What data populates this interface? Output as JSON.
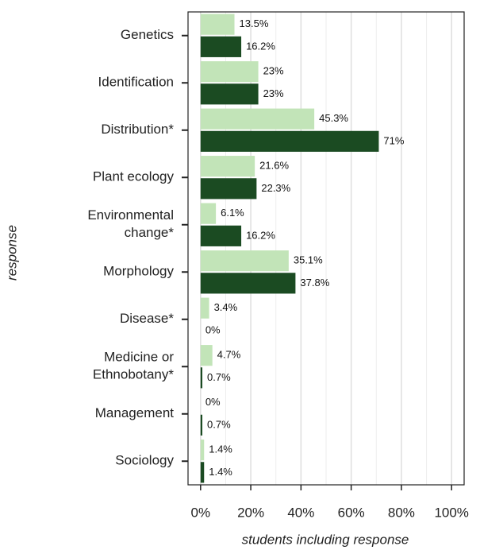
{
  "chart_data": {
    "type": "bar",
    "orientation": "horizontal",
    "x_label": "students including response",
    "y_label": "response",
    "categories": [
      "Genetics",
      "Identification",
      "Distribution*",
      "Plant ecology",
      "Environmental\nchange*",
      "Morphology",
      "Disease*",
      "Medicine or\nEthnobotany*",
      "Management",
      "Sociology"
    ],
    "series": [
      {
        "color": "#c2e4b8",
        "values": [
          13.5,
          23,
          45.3,
          21.6,
          6.1,
          35.1,
          3.4,
          4.7,
          0,
          1.4
        ],
        "value_labels": [
          "13.5%",
          "23%",
          "45.3%",
          "21.6%",
          "6.1%",
          "35.1%",
          "3.4%",
          "4.7%",
          "0%",
          "1.4%"
        ]
      },
      {
        "color": "#1b4b22",
        "values": [
          16.2,
          23,
          71,
          22.3,
          16.2,
          37.8,
          0,
          0.7,
          0.7,
          1.4
        ],
        "value_labels": [
          "16.2%",
          "23%",
          "71%",
          "22.3%",
          "16.2%",
          "37.8%",
          "0%",
          "0.7%",
          "0.7%",
          "1.4%"
        ]
      }
    ],
    "xlim": [
      -5,
      105
    ],
    "xticks": [
      {
        "value": 0,
        "label": "0%"
      },
      {
        "value": 20,
        "label": "20%"
      },
      {
        "value": 40,
        "label": "40%"
      },
      {
        "value": 60,
        "label": "60%"
      },
      {
        "value": 80,
        "label": "80%"
      },
      {
        "value": 100,
        "label": "100%"
      }
    ],
    "xminor": [
      10,
      30,
      50,
      70,
      90
    ],
    "grid": true
  }
}
